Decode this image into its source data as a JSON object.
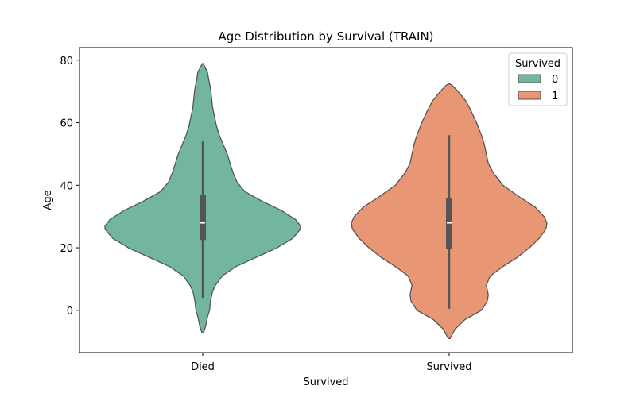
{
  "chart_data": {
    "type": "violin",
    "title": "Age Distribution by Survival (TRAIN)",
    "xlabel": "Survived",
    "ylabel": "Age",
    "categories": [
      "Died",
      "Survived"
    ],
    "ylim": [
      -13.5,
      84
    ],
    "yticks": [
      0,
      20,
      40,
      60,
      80
    ],
    "grid": false,
    "legend": {
      "title": "Survived",
      "position": "top-right",
      "entries": [
        {
          "label": "0",
          "color": "#72b6a1"
        },
        {
          "label": "1",
          "color": "#e99675"
        }
      ]
    },
    "series": [
      {
        "name": "0",
        "color": "#72b6a1",
        "category": "Died",
        "box": {
          "whisker_low": 4,
          "q1": 22.5,
          "median": 28,
          "q3": 37,
          "whisker_high": 54
        },
        "range": [
          -7,
          79
        ],
        "density": [
          [
            -7,
            0.01
          ],
          [
            -5,
            0.03
          ],
          [
            -2,
            0.05
          ],
          [
            0,
            0.07
          ],
          [
            3,
            0.08
          ],
          [
            6,
            0.1
          ],
          [
            8,
            0.13
          ],
          [
            11,
            0.2
          ],
          [
            14,
            0.34
          ],
          [
            17,
            0.55
          ],
          [
            20,
            0.76
          ],
          [
            23,
            0.92
          ],
          [
            26,
            1.0
          ],
          [
            27,
            1.0
          ],
          [
            29,
            0.95
          ],
          [
            32,
            0.8
          ],
          [
            35,
            0.6
          ],
          [
            38,
            0.43
          ],
          [
            41,
            0.35
          ],
          [
            44,
            0.31
          ],
          [
            47,
            0.28
          ],
          [
            50,
            0.25
          ],
          [
            53,
            0.21
          ],
          [
            56,
            0.17
          ],
          [
            59,
            0.14
          ],
          [
            62,
            0.12
          ],
          [
            65,
            0.1
          ],
          [
            68,
            0.09
          ],
          [
            71,
            0.08
          ],
          [
            74,
            0.06
          ],
          [
            76,
            0.05
          ],
          [
            78,
            0.02
          ],
          [
            79,
            0.0
          ]
        ]
      },
      {
        "name": "1",
        "color": "#e99675",
        "category": "Survived",
        "box": {
          "whisker_low": 0.5,
          "q1": 19.5,
          "median": 28,
          "q3": 36,
          "whisker_high": 56
        },
        "range": [
          -9,
          72.5
        ],
        "density": [
          [
            -9,
            0.01
          ],
          [
            -6,
            0.06
          ],
          [
            -3,
            0.16
          ],
          [
            0,
            0.33
          ],
          [
            3,
            0.39
          ],
          [
            5,
            0.4
          ],
          [
            8,
            0.38
          ],
          [
            11,
            0.42
          ],
          [
            14,
            0.55
          ],
          [
            17,
            0.7
          ],
          [
            20,
            0.82
          ],
          [
            23,
            0.92
          ],
          [
            26,
            0.99
          ],
          [
            28,
            1.0
          ],
          [
            30,
            0.97
          ],
          [
            33,
            0.88
          ],
          [
            36,
            0.73
          ],
          [
            40,
            0.55
          ],
          [
            44,
            0.45
          ],
          [
            47,
            0.4
          ],
          [
            50,
            0.38
          ],
          [
            53,
            0.36
          ],
          [
            56,
            0.33
          ],
          [
            60,
            0.28
          ],
          [
            64,
            0.22
          ],
          [
            67,
            0.17
          ],
          [
            70,
            0.09
          ],
          [
            72,
            0.03
          ],
          [
            72.5,
            0.0
          ]
        ]
      }
    ]
  }
}
